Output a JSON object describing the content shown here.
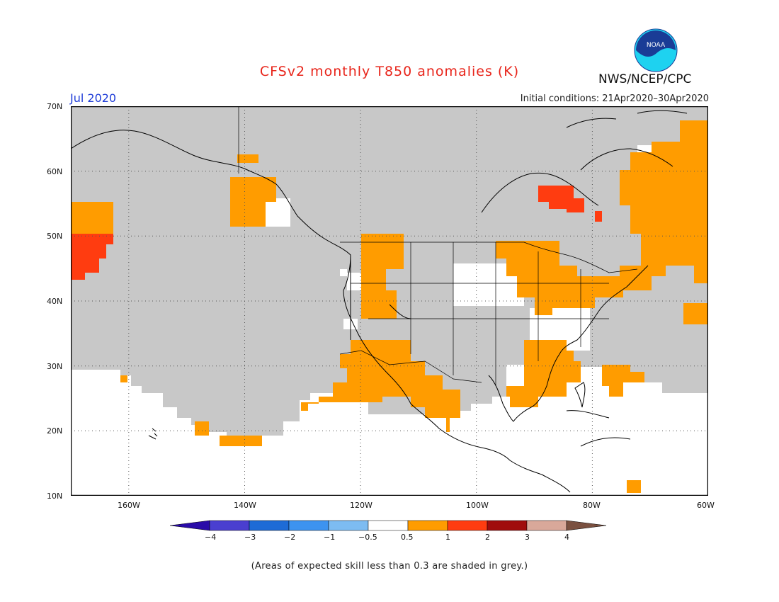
{
  "header": {
    "title": "CFSv2 monthly T850 anomalies (K)",
    "agency": "NWS/NCEP/CPC",
    "logo_text": "NOAA",
    "month": "Jul 2020",
    "initial_conditions": "Initial conditions: 21Apr2020–30Apr2020"
  },
  "map": {
    "lat_labels": [
      "70N",
      "60N",
      "50N",
      "40N",
      "30N",
      "20N",
      "10N"
    ],
    "lon_labels": [
      "160W",
      "140W",
      "120W",
      "100W",
      "80W",
      "60W"
    ],
    "colors": {
      "skill_grey": "#c8c8c8",
      "orange": "#ff9c00",
      "red_orange": "#ff3c10",
      "coast": "#000000"
    }
  },
  "colorbar": {
    "labels": [
      "−4",
      "−3",
      "−2",
      "−1",
      "−0.5",
      "0.5",
      "1",
      "2",
      "3",
      "4"
    ],
    "colors": [
      "#2a0ca8",
      "#4a3fd0",
      "#1e6bd6",
      "#3d93f0",
      "#7dbcf2",
      "#ffffff",
      "#ff9c00",
      "#ff3c10",
      "#a00c0c",
      "#d9a89a",
      "#7a5040"
    ]
  },
  "footnote": "(Areas of expected skill less than 0.3 are shaded in grey.)"
}
